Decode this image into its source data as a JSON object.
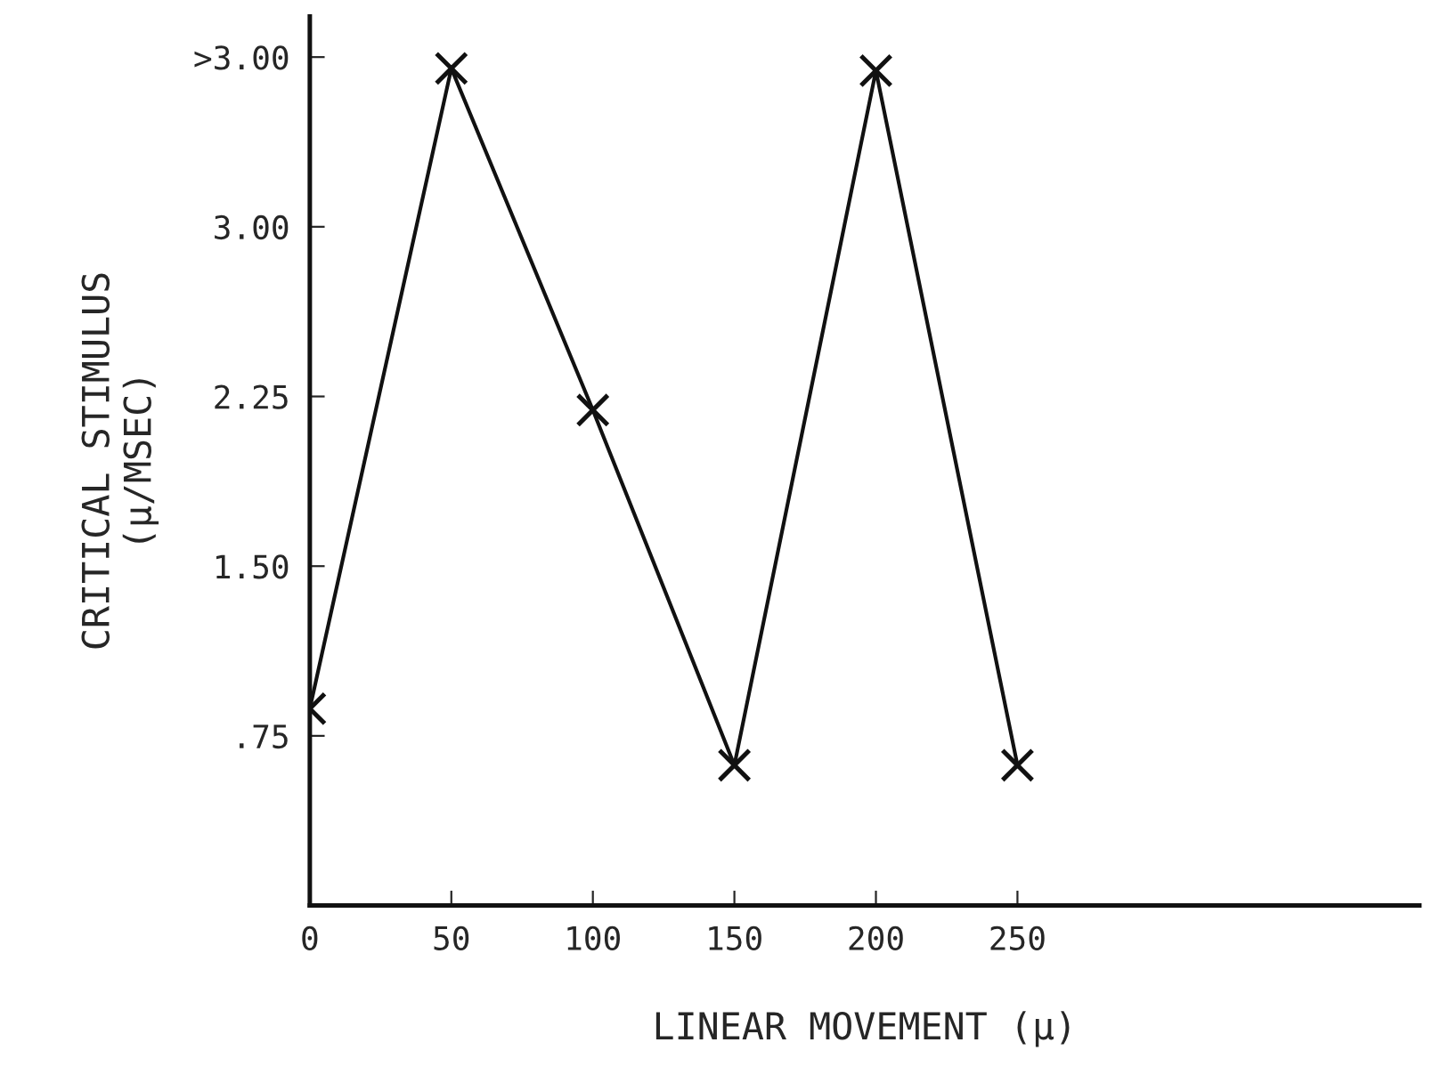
{
  "chart_data": {
    "type": "line",
    "xlabel": "LINEAR MOVEMENT (μ)",
    "ylabel": "CRITICAL STIMULUS\n(μ/MSEC)",
    "x": [
      0,
      50,
      100,
      150,
      200,
      250
    ],
    "series": [
      {
        "color": "#111111",
        "values": [
          0.87,
          3.7,
          2.19,
          0.62,
          3.69,
          0.62
        ]
      }
    ],
    "xlim": [
      0,
      392
    ],
    "xticks": [
      0,
      50,
      100,
      150,
      200,
      250
    ],
    "ylim": [
      0,
      3.93
    ],
    "yticks": [
      {
        "value": 0.75,
        "label": ".75"
      },
      {
        "value": 1.5,
        "label": "1.50"
      },
      {
        "value": 2.25,
        "label": "2.25"
      },
      {
        "value": 3.0,
        "label": "3.00"
      },
      {
        "value": 3.75,
        "label": ">3.00"
      }
    ],
    "grid": false,
    "marker": "cross",
    "line_style": "solid"
  }
}
